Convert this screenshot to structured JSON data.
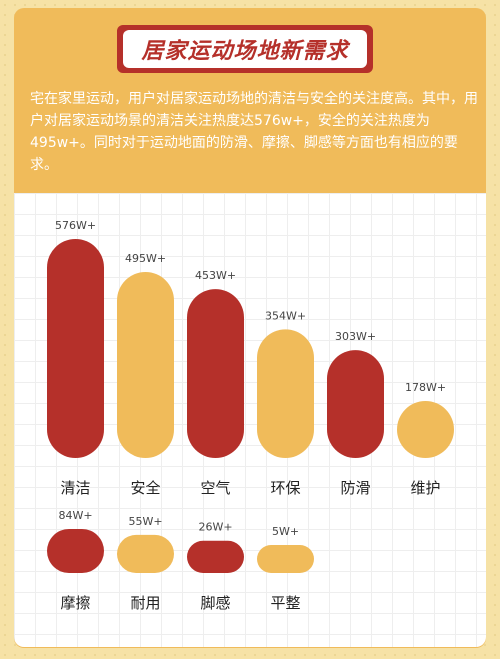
{
  "header": {
    "title": "居家运动场地新需求",
    "description": "宅在家里运动，用户对居家运动场地的清洁与安全的关注度高。其中，用户对居家运动场景的清洁关注热度达576w+，安全的关注热度为495w+。同时对于运动地面的防滑、摩擦、脚感等方面也有相应的要求。"
  },
  "colors": {
    "background": "#f6e2a6",
    "card": "#f0bb5a",
    "accent_red": "#b5302a",
    "accent_yellow": "#f0bb5a"
  },
  "chart_data": {
    "type": "bar",
    "title": "",
    "xlabel": "",
    "ylabel": "",
    "ylim": [
      0,
      576
    ],
    "grid": true,
    "series": [
      {
        "categories": [
          "清洁",
          "安全",
          "空气",
          "环保",
          "防滑",
          "维护"
        ],
        "values": [
          576,
          495,
          453,
          354,
          303,
          178
        ],
        "labels": [
          "576W+",
          "495W+",
          "453W+",
          "354W+",
          "303W+",
          "178W+"
        ],
        "colors": [
          "#b5302a",
          "#f0bb5a",
          "#b5302a",
          "#f0bb5a",
          "#b5302a",
          "#f0bb5a"
        ]
      },
      {
        "categories": [
          "摩擦",
          "耐用",
          "脚感",
          "平整"
        ],
        "values": [
          84,
          55,
          26,
          5
        ],
        "labels": [
          "84W+",
          "55W+",
          "26W+",
          "5W+"
        ],
        "colors": [
          "#b5302a",
          "#f0bb5a",
          "#b5302a",
          "#f0bb5a"
        ]
      }
    ]
  }
}
